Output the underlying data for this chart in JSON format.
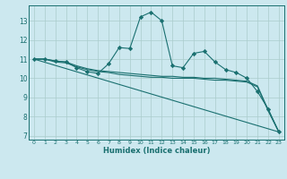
{
  "xlabel": "Humidex (Indice chaleur)",
  "bg_color": "#cce8ef",
  "grid_color": "#aacccc",
  "line_color": "#1a7070",
  "xlim": [
    -0.5,
    23.5
  ],
  "ylim": [
    6.8,
    13.8
  ],
  "xticks": [
    0,
    1,
    2,
    3,
    4,
    5,
    6,
    7,
    8,
    9,
    10,
    11,
    12,
    13,
    14,
    15,
    16,
    17,
    18,
    19,
    20,
    21,
    22,
    23
  ],
  "yticks": [
    7,
    8,
    9,
    10,
    11,
    12,
    13
  ],
  "series": [
    {
      "x": [
        0,
        23
      ],
      "y": [
        11.0,
        7.2
      ],
      "marker": false
    },
    {
      "x": [
        0,
        1,
        2,
        3,
        4,
        5,
        6,
        7,
        8,
        9,
        10,
        11,
        12,
        13,
        14,
        15,
        16,
        17,
        18,
        19,
        20,
        21,
        22,
        23
      ],
      "y": [
        11.0,
        11.0,
        10.9,
        10.85,
        10.55,
        10.35,
        10.25,
        10.75,
        11.6,
        11.55,
        13.2,
        13.45,
        13.0,
        10.65,
        10.55,
        11.3,
        11.4,
        10.85,
        10.45,
        10.3,
        10.0,
        9.3,
        8.4,
        7.2
      ],
      "marker": true
    },
    {
      "x": [
        0,
        1,
        2,
        3,
        4,
        5,
        6,
        7,
        8,
        9,
        10,
        11,
        12,
        13,
        14,
        15,
        16,
        17,
        18,
        19,
        20,
        21,
        22,
        23
      ],
      "y": [
        11.0,
        11.0,
        10.85,
        10.8,
        10.6,
        10.45,
        10.35,
        10.3,
        10.2,
        10.15,
        10.1,
        10.05,
        10.05,
        10.0,
        10.0,
        10.0,
        9.95,
        9.9,
        9.9,
        9.85,
        9.8,
        9.55,
        8.3,
        7.2
      ],
      "marker": false
    },
    {
      "x": [
        0,
        1,
        2,
        3,
        4,
        5,
        6,
        7,
        8,
        9,
        10,
        11,
        12,
        13,
        14,
        15,
        16,
        17,
        18,
        19,
        20,
        21,
        22,
        23
      ],
      "y": [
        11.0,
        11.0,
        10.9,
        10.85,
        10.65,
        10.5,
        10.4,
        10.35,
        10.3,
        10.25,
        10.2,
        10.15,
        10.1,
        10.1,
        10.05,
        10.05,
        10.0,
        10.0,
        9.95,
        9.9,
        9.85,
        9.6,
        8.35,
        7.2
      ],
      "marker": false
    }
  ]
}
